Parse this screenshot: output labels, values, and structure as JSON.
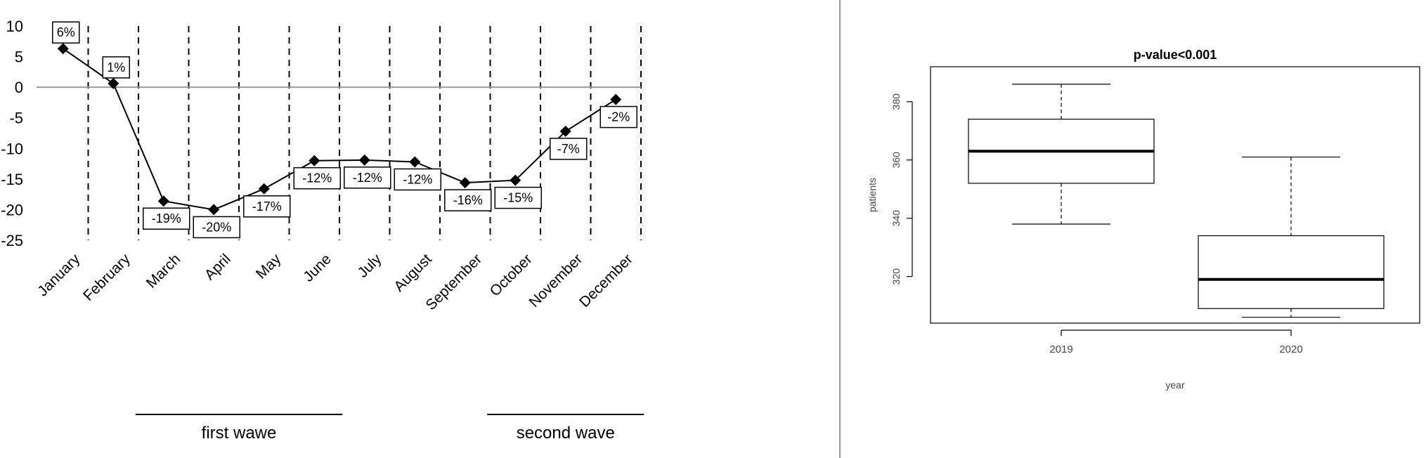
{
  "chart_data": [
    {
      "type": "line",
      "categories": [
        "January",
        "February",
        "March",
        "April",
        "May",
        "June",
        "July",
        "August",
        "September",
        "October",
        "November",
        "December"
      ],
      "series": [
        {
          "values": [
            6.3,
            0.6,
            -18.6,
            -20.0,
            -16.6,
            -12.0,
            -11.9,
            -12.2,
            -15.6,
            -15.2,
            -7.2,
            -2.0
          ]
        }
      ],
      "point_labels": [
        "6%",
        "1%",
        "-19%",
        "-20%",
        "-17%",
        "-12%",
        "-12%",
        "-12%",
        "-16%",
        "-15%",
        "-7%",
        "-2%"
      ],
      "y_ticks": [
        10,
        5,
        0,
        -5,
        -10,
        -15,
        -20,
        -25
      ],
      "ylim": [
        -25,
        10
      ],
      "period_labels": [
        {
          "text": "first wawe",
          "from": "March",
          "to": "June"
        },
        {
          "text": "second wave",
          "from": "October",
          "to": "December"
        }
      ],
      "title": "",
      "xlabel": "",
      "ylabel": "",
      "marker": "diamond",
      "line_color": "#000000",
      "zero_line_color": "#9a9a9a",
      "month_separators": "dashed",
      "grid": false
    },
    {
      "type": "boxplot",
      "title": "p-value<0.001",
      "xlabel": "year",
      "ylabel": "patients",
      "categories": [
        "2019",
        "2020"
      ],
      "boxes": [
        {
          "name": "2019",
          "min": 338,
          "q1": 352,
          "median": 363,
          "q3": 374,
          "max": 386
        },
        {
          "name": "2020",
          "min": 306,
          "q1": 309,
          "median": 319,
          "q3": 334,
          "max": 361
        }
      ],
      "y_ticks": [
        320,
        340,
        360,
        380
      ],
      "ylim": [
        304,
        392
      ],
      "grid": false
    }
  ]
}
